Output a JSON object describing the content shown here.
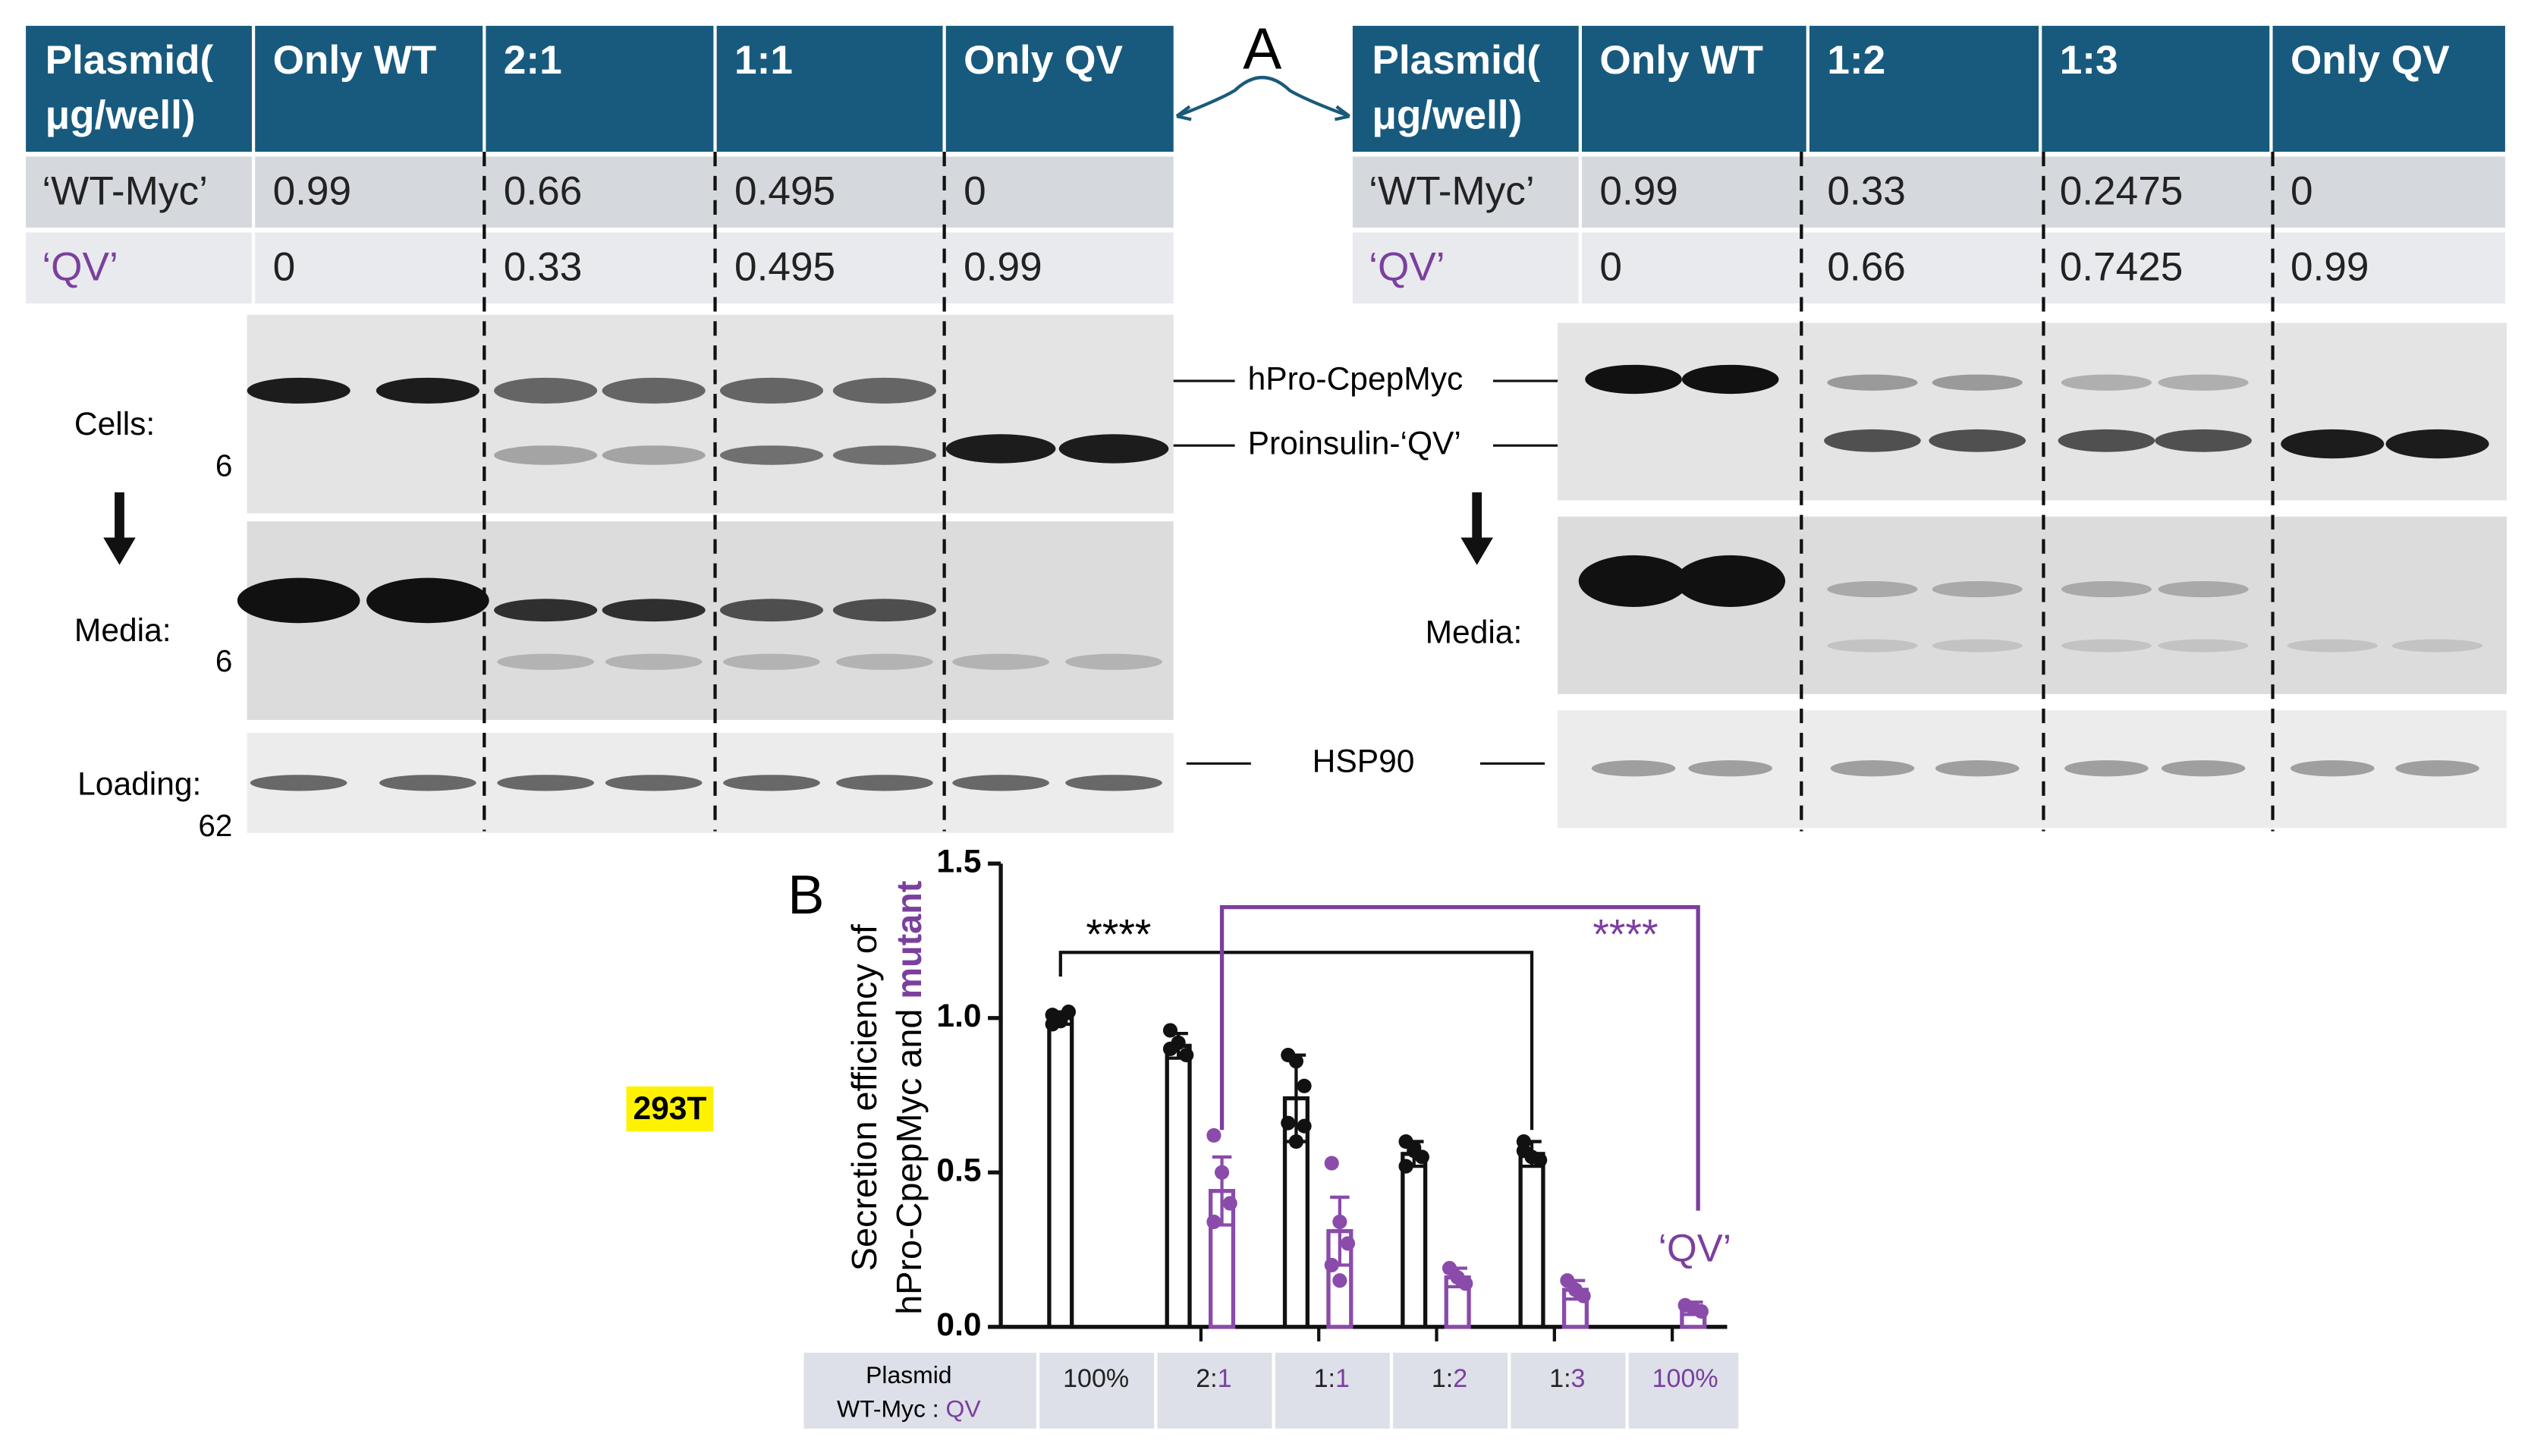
{
  "figure": {
    "panel_a_label": "A",
    "table_left": {
      "header_title": [
        "Plasmid(",
        "μg/well)"
      ],
      "header": [
        "Only WT",
        "2:1",
        "1:1",
        "Only QV"
      ],
      "rows": [
        {
          "label": "‘WT-Myc’",
          "values": [
            0.99,
            0.66,
            0.495,
            0
          ]
        },
        {
          "label": "‘QV’",
          "values": [
            0,
            0.33,
            0.495,
            0.99
          ]
        }
      ]
    },
    "table_right": {
      "header_title": [
        "Plasmid(",
        "μg/well)"
      ],
      "header": [
        "Only WT",
        "1:2",
        "1:3",
        "Only QV"
      ],
      "rows": [
        {
          "label": "‘WT-Myc’",
          "values": [
            0.99,
            0.33,
            0.2475,
            0
          ]
        },
        {
          "label": "‘QV’",
          "values": [
            0,
            0.66,
            0.7425,
            0.99
          ]
        }
      ]
    },
    "blot_left_labels": {
      "cells": "Cells:",
      "cells_marker": "6",
      "media": "Media:",
      "media_marker": "6",
      "loading": "Loading:",
      "loading_marker": "62"
    },
    "blot_right_labels": {
      "media": "Media:"
    },
    "band_labels": [
      "hPro-CpepMyc",
      "Proinsulin-‘QV’",
      "HSP90"
    ],
    "cell_line": "293T"
  },
  "chart_data": {
    "type": "bar",
    "panel_label": "B",
    "y_label_line1": "Secretion efficiency of",
    "y_label_line2": "hPro-CpepMyc and ",
    "y_label_highlight": "mutant",
    "ylim": [
      0,
      1.5
    ],
    "yticks": [
      {
        "value": 0,
        "label": "0.0"
      },
      0.5,
      {
        "value": 1,
        "label": "1.0"
      },
      1.5
    ],
    "x_table_header": [
      "Plasmid",
      "WT-Myc : ",
      "QV"
    ],
    "categories": [
      "100%",
      "2:1",
      "1:1",
      "1:2",
      "1:3",
      "100%"
    ],
    "series": [
      {
        "color": "#111111",
        "values": [
          1.0,
          0.91,
          0.74,
          0.56,
          0.56,
          null
        ],
        "errors": [
          0.02,
          0.04,
          0.14,
          0.04,
          0.04,
          null
        ],
        "points": [
          [
            1.01,
            0.99,
            1.02,
            0.98,
            1.0
          ],
          [
            0.96,
            0.92,
            0.88,
            0.9
          ],
          [
            0.88,
            0.86,
            0.78,
            0.66,
            0.6,
            0.65
          ],
          [
            0.6,
            0.58,
            0.55,
            0.52,
            0.57
          ],
          [
            0.6,
            0.55,
            0.54,
            0.57
          ],
          null
        ]
      },
      {
        "color": "#8a4bab",
        "values": [
          null,
          0.44,
          0.31,
          0.16,
          0.12,
          0.06
        ],
        "errors": [
          null,
          0.11,
          0.11,
          0.03,
          0.03,
          0.02
        ],
        "points": [
          null,
          [
            0.62,
            0.5,
            0.4,
            0.34
          ],
          [
            0.53,
            0.34,
            0.27,
            0.2,
            0.15
          ],
          [
            0.19,
            0.16,
            0.14
          ],
          [
            0.15,
            0.12,
            0.1
          ],
          [
            0.07,
            0.06,
            0.05
          ]
        ]
      }
    ],
    "annotations": [
      "****",
      "****",
      "‘QV’"
    ]
  }
}
